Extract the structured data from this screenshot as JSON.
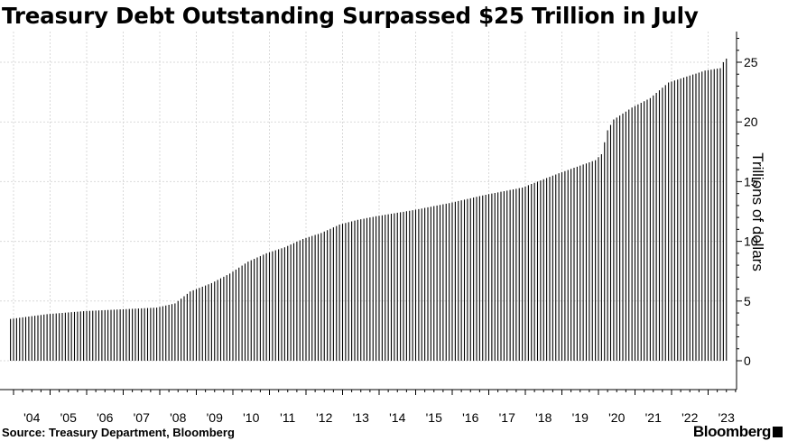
{
  "chart_data": {
    "type": "bar",
    "title": "Treasury Debt Outstanding Surpassed $25 Trillion in July",
    "ylabel": "Trillions of dollars",
    "ylim": [
      0,
      27.5
    ],
    "y_ticks": [
      0,
      5,
      10,
      15,
      20,
      25
    ],
    "x_tick_labels": [
      "'04",
      "'05",
      "'06",
      "'07",
      "'08",
      "'09",
      "'10",
      "'11",
      "'12",
      "'13",
      "'14",
      "'15",
      "'16",
      "'17",
      "'18",
      "'19",
      "'20",
      "'21",
      "'22",
      "'23"
    ],
    "x_range": [
      "2003-12",
      "2023-08"
    ],
    "grid": true,
    "frequency": "monthly",
    "anchors": [
      [
        "2003-12",
        3.5
      ],
      [
        "2004-12",
        3.9
      ],
      [
        "2005-12",
        4.15
      ],
      [
        "2006-12",
        4.3
      ],
      [
        "2007-12",
        4.45
      ],
      [
        "2008-06",
        4.8
      ],
      [
        "2008-11",
        5.8
      ],
      [
        "2009-06",
        6.5
      ],
      [
        "2009-12",
        7.3
      ],
      [
        "2010-06",
        8.3
      ],
      [
        "2010-12",
        9.0
      ],
      [
        "2011-06",
        9.5
      ],
      [
        "2011-12",
        10.2
      ],
      [
        "2012-06",
        10.7
      ],
      [
        "2012-12",
        11.4
      ],
      [
        "2013-06",
        11.8
      ],
      [
        "2013-12",
        12.1
      ],
      [
        "2014-12",
        12.6
      ],
      [
        "2015-12",
        13.2
      ],
      [
        "2016-12",
        13.9
      ],
      [
        "2017-12",
        14.5
      ],
      [
        "2018-12",
        15.7
      ],
      [
        "2019-12",
        16.8
      ],
      [
        "2020-02",
        17.3
      ],
      [
        "2020-04",
        19.3
      ],
      [
        "2020-06",
        20.2
      ],
      [
        "2020-12",
        21.2
      ],
      [
        "2021-06",
        22.0
      ],
      [
        "2021-12",
        23.3
      ],
      [
        "2022-12",
        24.3
      ],
      [
        "2023-05",
        24.5
      ],
      [
        "2023-06",
        25.0
      ],
      [
        "2023-07",
        25.3
      ]
    ]
  },
  "source": "Source: Treasury Department, Bloomberg",
  "logo": "Bloomberg",
  "colors": {
    "bar": "#000000",
    "grid": "#d9d9d9",
    "background": "#ffffff"
  }
}
